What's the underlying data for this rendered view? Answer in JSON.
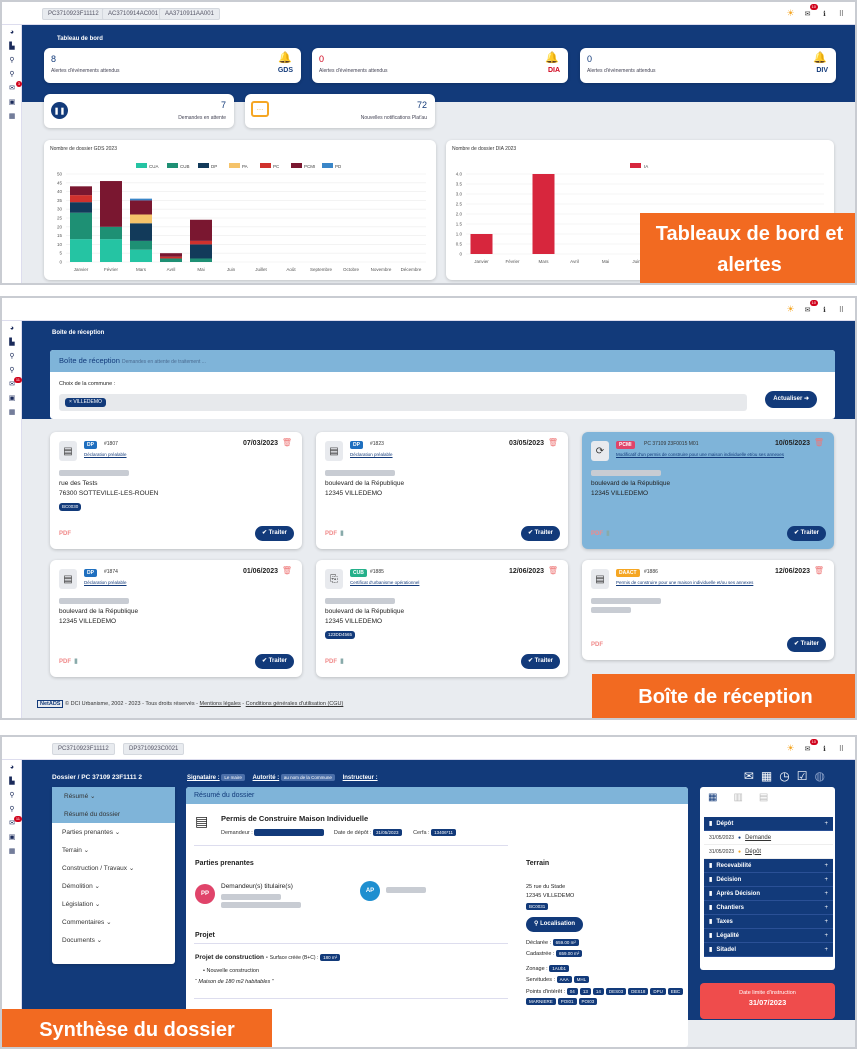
{
  "overlays": {
    "p1": "Tableaux de bord et alertes",
    "p2": "Boîte de réception",
    "p3": "Synthèse du dossier"
  },
  "p1": {
    "chips": [
      "PC3710923F11112",
      "AC3710914AC001",
      "AA3710911AA001"
    ],
    "section_title": "Tableau de bord",
    "alerts": [
      {
        "value": "8",
        "label": "Alertes d'évènements attendus",
        "code": "GDS",
        "alert": false
      },
      {
        "value": "0",
        "label": "Alertes d'évènements attendus",
        "code": "DIA",
        "alert": true
      },
      {
        "value": "0",
        "label": "Alertes d'évènements attendus",
        "code": "DIV",
        "alert": false
      }
    ],
    "pending": {
      "value": "7",
      "label": "Demandes en attente"
    },
    "notifs": {
      "value": "72",
      "label": "Nouvelles notifications Plat'au"
    },
    "colors": {
      "CUA": "#25c4a3",
      "CUB": "#1e9074",
      "DP": "#123a5a",
      "PA": "#f5c36a",
      "PC": "#d0312d",
      "PCMI": "#7a1730",
      "PD": "#3a86c8",
      "IA": "#d7263d"
    }
  },
  "chart_data": [
    {
      "type": "bar",
      "stacked": true,
      "title": "Nombre de dossier GDS 2023",
      "categories": [
        "Janvier",
        "Février",
        "Mars",
        "Avril",
        "Mai",
        "Juin",
        "Juillet",
        "Août",
        "Septembre",
        "Octobre",
        "Novembre",
        "Décembre"
      ],
      "series": [
        {
          "name": "CUA",
          "values": [
            13,
            13,
            7,
            0,
            0,
            0,
            0,
            0,
            0,
            0,
            0,
            0
          ]
        },
        {
          "name": "CUB",
          "values": [
            15,
            7,
            5,
            2,
            2,
            0,
            0,
            0,
            0,
            0,
            0,
            0
          ]
        },
        {
          "name": "DP",
          "values": [
            6,
            0,
            10,
            0,
            8,
            0,
            0,
            0,
            0,
            0,
            0,
            0
          ]
        },
        {
          "name": "PA",
          "values": [
            0,
            0,
            5,
            0,
            0,
            0,
            0,
            0,
            0,
            0,
            0,
            0
          ]
        },
        {
          "name": "PC",
          "values": [
            4,
            0,
            0,
            1,
            2,
            0,
            0,
            0,
            0,
            0,
            0,
            0
          ]
        },
        {
          "name": "PCMI",
          "values": [
            5,
            26,
            8,
            2,
            12,
            0,
            0,
            0,
            0,
            0,
            0,
            0
          ]
        },
        {
          "name": "PD",
          "values": [
            0,
            0,
            1,
            0,
            0,
            0,
            0,
            0,
            0,
            0,
            0,
            0
          ]
        }
      ],
      "ylim": [
        0,
        50
      ],
      "yticks": [
        0,
        5,
        10,
        15,
        20,
        25,
        30,
        35,
        40,
        45,
        50
      ],
      "legend": "top"
    },
    {
      "type": "bar",
      "title": "Nombre de dossier DIA 2023",
      "categories": [
        "Janvier",
        "Février",
        "Mars",
        "Avril",
        "Mai",
        "Juin"
      ],
      "series": [
        {
          "name": "IA",
          "values": [
            1,
            0,
            4,
            0,
            0,
            0
          ]
        }
      ],
      "ylim": [
        0,
        4
      ],
      "yticks": [
        "0",
        "0.5",
        "1.0",
        "1.5",
        "2.0",
        "2.5",
        "3.0",
        "3.5",
        "4.0"
      ],
      "legend": "top"
    }
  ],
  "p2": {
    "page_title": "Boite de réception",
    "box_title": "Boîte de réception",
    "box_sub": "Demandes en attente de traitement ...",
    "commune_label": "Choix de la commune :",
    "commune_value": "VILLEDEMO",
    "refresh": "Actualiser",
    "cards": [
      {
        "tag": "DP",
        "tagcolor": "#1f6fbf",
        "num": "#1807",
        "date": "07/03/2023",
        "type": "Déclaration préalable",
        "addr1": "rue des Tests",
        "addr2": "76300 SOTTEVILLE-LES-ROUEN",
        "bc": "BC0030",
        "btn": "Traiter",
        "sel": false
      },
      {
        "tag": "DP",
        "tagcolor": "#1f6fbf",
        "num": "#1823",
        "date": "03/05/2023",
        "type": "Déclaration préalable",
        "addr1": "boulevard de la République",
        "addr2": "12345 VILLEDEMO",
        "bc": "",
        "btn": "Traiter",
        "sel": false
      },
      {
        "tag": "PCMI",
        "tagcolor": "#e0446a",
        "num": "PC 37109 23F0015 M01",
        "date": "10/05/2023",
        "type": "Modificatif d'un permis de construire pour une maison individuelle et/ou ses annexes",
        "addr1": "boulevard de la République",
        "addr2": "12345 VILLEDEMO",
        "bc": "",
        "btn": "Traiter",
        "sel": true
      },
      {
        "tag": "DP",
        "tagcolor": "#1f6fbf",
        "num": "#1874",
        "date": "01/06/2023",
        "type": "Déclaration préalable",
        "addr1": "boulevard de la République",
        "addr2": "12345 VILLEDEMO",
        "bc": "",
        "btn": "Traiter",
        "sel": false
      },
      {
        "tag": "CUB",
        "tagcolor": "#25b08a",
        "num": "#1885",
        "date": "12/06/2023",
        "type": "Certificat d'urbanisme opérationnel",
        "addr1": "boulevard de la République",
        "addr2": "12345 VILLEDEMO",
        "bc": "123DD4565",
        "btn": "Traiter",
        "sel": false
      },
      {
        "tag": "DAACT",
        "tagcolor": "#f5a623",
        "num": "#1886",
        "date": "12/06/2023",
        "type": "Permis de construire pour une maison individuelle et/ou ses annexes",
        "addr1": "",
        "addr2": "",
        "bc": "",
        "btn": "Traiter",
        "sel": false
      }
    ],
    "footer": {
      "logo": "NetADS",
      "text1": "© DCI Urbanisme, 2002 - 2023 - Tous droits réservés - ",
      "legal": "Mentions légales",
      "sep": " - ",
      "cgu": "Conditions générales d'utilisation (CGU)"
    }
  },
  "p3": {
    "chips": [
      "PC3710923F11112",
      "DP3710923C0021"
    ],
    "breadcrumb": "Dossier / PC 37109 23F1111 2",
    "signataire_label": "Signataire :",
    "signataire": "Le maire",
    "autorite_label": "Autorité :",
    "autorite": "au nom de la Commune",
    "instructeur_label": "Instructeur :",
    "nav": [
      "Résumé",
      "Résumé du dossier",
      "Parties prenantes",
      "Terrain",
      "Construction / Travaux",
      "Démolition",
      "Législation",
      "Commentaires",
      "Documents"
    ],
    "main_title": "Résumé du dossier",
    "doc_title": "Permis de Construire Maison Individuelle",
    "demandeur_label": "Demandeur :",
    "depot_label": "Date de dépôt :",
    "depot": "31/05/2023",
    "cerfa_label": "Cerfa :",
    "cerfa": "13406*11",
    "parties_title": "Parties prenantes",
    "pp": "PP",
    "ap": "AP",
    "demandeurs": "Demandeur(s) titulaire(s)",
    "projet_title": "Projet",
    "projet_line": "Projet de construction -",
    "surface_label": "Surface créée (B+C) :",
    "surface": "180 m²",
    "bullet": "Nouvelle construction",
    "quote": "Maison de 180 m2 habitables",
    "terrain_title": "Terrain",
    "terrain_addr1": "25 rue du Stade",
    "terrain_addr2": "12345 VILLEDEMO",
    "terrain_bc": "BC0031",
    "localisation": "Localisation",
    "declaree_label": "Déclarée :",
    "declaree": "659.00 m²",
    "cadastree_label": "Cadastrée :",
    "cadastree": "659.00 m²",
    "zonage_label": "Zonage :",
    "zonage": [
      "1AUb1"
    ],
    "servitudes_label": "Servitudes :",
    "servitudes": [
      "AAA",
      "MHL"
    ],
    "points_label": "Points d'intérêt :",
    "points": [
      "04",
      "13",
      "14",
      "DES03",
      "DES18",
      "DPU",
      "EBC",
      "MARNIERE",
      "POI01",
      "POI03"
    ],
    "side_rows": [
      {
        "label": "Dépôt",
        "sel": true
      },
      {
        "label": "Recevabilité"
      },
      {
        "label": "Décision"
      },
      {
        "label": "Après Décision"
      },
      {
        "label": "Chantiers"
      },
      {
        "label": "Taxes"
      },
      {
        "label": "Légalité"
      },
      {
        "label": "Sitadel"
      }
    ],
    "events": [
      {
        "date": "31/05/2023",
        "label": "Demande"
      },
      {
        "date": "31/05/2023",
        "label": "Dépôt"
      }
    ],
    "deadline_label": "Date limite d'instruction",
    "deadline": "31/07/2023"
  }
}
